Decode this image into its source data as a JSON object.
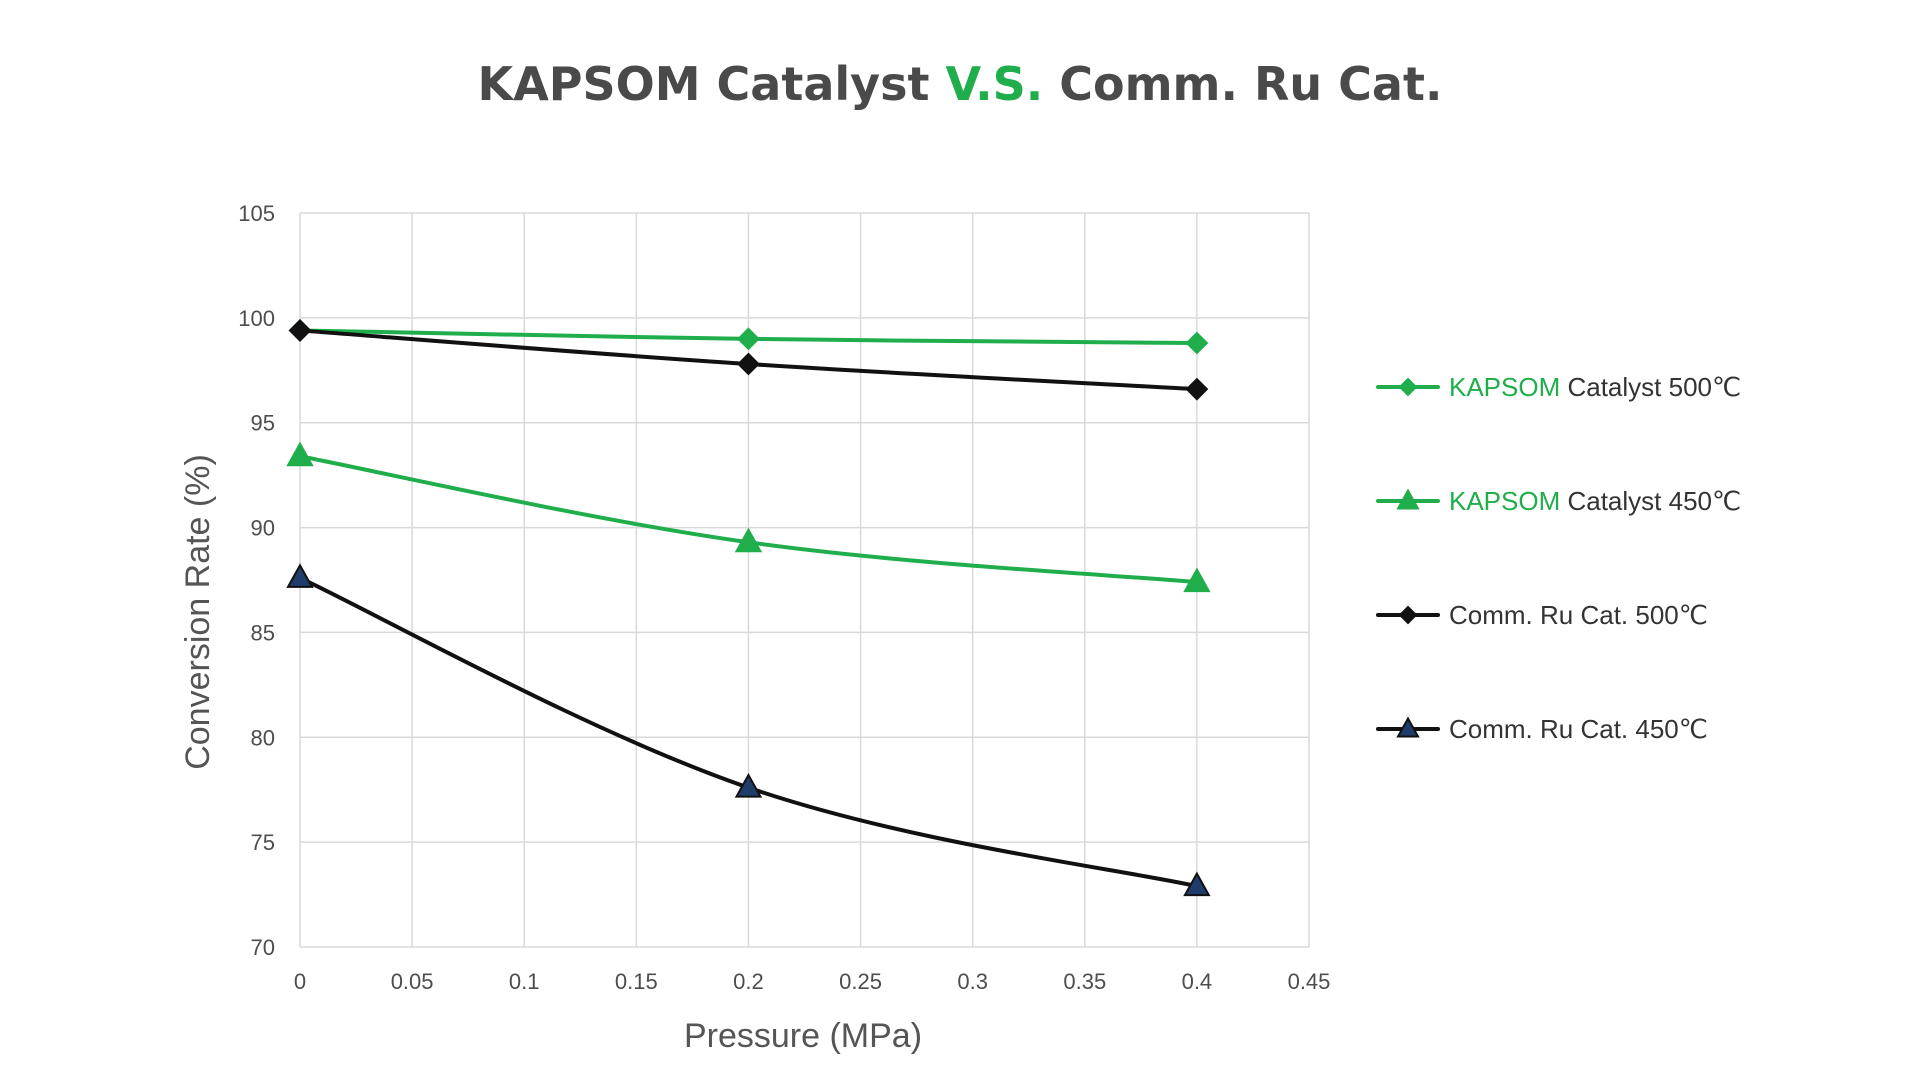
{
  "chart_data": {
    "type": "line",
    "title": {
      "part1": "KAPSOM Catalyst ",
      "part2": "V.S.",
      "part3": " Comm. Ru Cat.",
      "color_main": "#4a4a4a",
      "color_accent": "#1fae4b"
    },
    "xlabel": "Pressure (MPa)",
    "ylabel": "Conversion Rate  (%)",
    "xlim": [
      0,
      0.45
    ],
    "ylim": [
      70,
      105
    ],
    "xticks": [
      0,
      0.05,
      0.1,
      0.15,
      0.2,
      0.25,
      0.3,
      0.35,
      0.4,
      0.45
    ],
    "xtick_labels": [
      "0",
      "0.05",
      "0.1",
      "0.15",
      "0.2",
      "0.25",
      "0.3",
      "0.35",
      "0.4",
      "0.45"
    ],
    "yticks": [
      70,
      75,
      80,
      85,
      90,
      95,
      100,
      105
    ],
    "ytick_labels": [
      "70",
      "75",
      "80",
      "85",
      "90",
      "95",
      "100",
      "105"
    ],
    "grid": true,
    "legend_position": "right",
    "x": [
      0,
      0.2,
      0.4
    ],
    "series": [
      {
        "name": "KAPSOM Catalyst 500℃",
        "name_brand": "KAPSOM",
        "name_rest": " Catalyst 500℃",
        "values": [
          99.4,
          99.0,
          98.8
        ],
        "color": "#1fae4b",
        "marker": "diamond",
        "marker_fill": "#1fae4b",
        "marker_stroke": "#1fae4b"
      },
      {
        "name": "KAPSOM Catalyst 450℃",
        "name_brand": "KAPSOM",
        "name_rest": " Catalyst 450℃",
        "values": [
          93.4,
          89.3,
          87.4
        ],
        "color": "#1fae4b",
        "marker": "triangle",
        "marker_fill": "#1fae4b",
        "marker_stroke": "#1fae4b"
      },
      {
        "name": "Comm. Ru Cat. 500℃",
        "name_brand": "",
        "name_rest": "Comm. Ru Cat. 500℃",
        "values": [
          99.4,
          97.8,
          96.6
        ],
        "color": "#111111",
        "marker": "diamond",
        "marker_fill": "#111111",
        "marker_stroke": "#111111"
      },
      {
        "name": "Comm. Ru Cat. 450℃",
        "name_brand": "",
        "name_rest": "Comm. Ru Cat. 450℃",
        "values": [
          87.6,
          77.6,
          72.9
        ],
        "color": "#111111",
        "marker": "triangle",
        "marker_fill": "#1f3c6b",
        "marker_stroke": "#111111"
      }
    ],
    "legend_text_color": "#333333",
    "legend_brand_color": "#1fae4b",
    "grid_color": "#d9d9d9",
    "axis_text_color": "#4d4d4d"
  }
}
